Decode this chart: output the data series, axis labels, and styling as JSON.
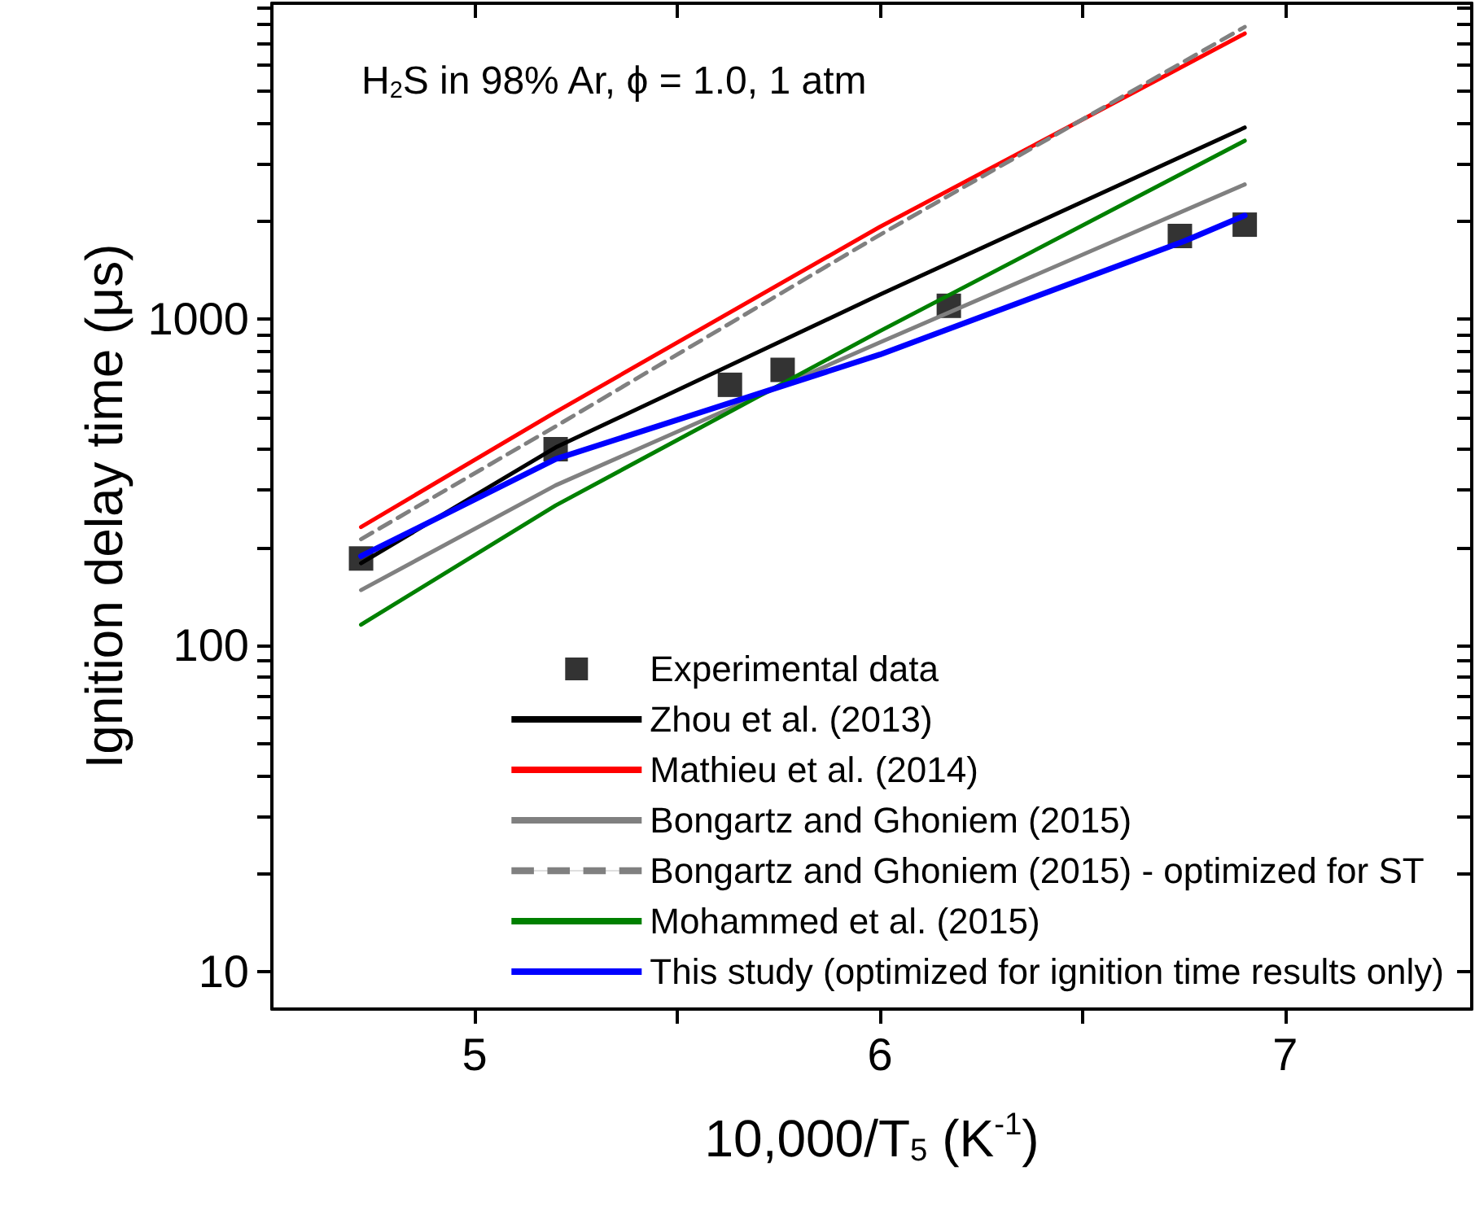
{
  "chart_data": {
    "type": "line",
    "xlabel": "10,000/T$_{5}$ (K$^{-1}$)",
    "ylabel": "Ignition delay time (μs)",
    "annotations": [
      "H$_{2}$S in 98% Ar, ϕ = 1.0, 1 atm"
    ],
    "log": "y",
    "xlim": [
      4.5,
      7.46
    ],
    "ylim": [
      7.7,
      9300
    ],
    "xticks": [
      5,
      {
        "value": 5.5,
        "label": null
      },
      6,
      {
        "value": 6.5,
        "label": null
      },
      7
    ],
    "yticks": [
      10,
      {
        "value": 20,
        "label": null
      },
      {
        "value": 30,
        "label": null
      },
      {
        "value": 40,
        "label": null
      },
      {
        "value": 50,
        "label": null
      },
      {
        "value": 60,
        "label": null
      },
      {
        "value": 70,
        "label": null
      },
      {
        "value": 80,
        "label": null
      },
      {
        "value": 90,
        "label": null
      },
      100,
      {
        "value": 200,
        "label": null
      },
      {
        "value": 300,
        "label": null
      },
      {
        "value": 400,
        "label": null
      },
      {
        "value": 500,
        "label": null
      },
      {
        "value": 600,
        "label": null
      },
      {
        "value": 700,
        "label": null
      },
      {
        "value": 800,
        "label": null
      },
      {
        "value": 900,
        "label": null
      },
      1000,
      {
        "value": 2000,
        "label": null
      },
      {
        "value": 3000,
        "label": null
      },
      {
        "value": 4000,
        "label": null
      },
      {
        "value": 5000,
        "label": null
      },
      {
        "value": 6000,
        "label": null
      },
      {
        "value": 7000,
        "label": null
      },
      {
        "value": 8000,
        "label": null
      },
      {
        "value": 9000,
        "label": null
      }
    ],
    "grid": false,
    "legend": "bottom right",
    "series": [
      {
        "name": "Experimental data",
        "type": "scatter",
        "marker": "square",
        "color": "#000000",
        "x": [
          4.72,
          5.2,
          5.63,
          5.76,
          6.17,
          6.74,
          6.9
        ],
        "values": [
          185,
          400,
          630,
          700,
          1100,
          1800,
          1950
        ]
      },
      {
        "name": "Zhou et al. (2013)",
        "marker": "none",
        "line_style": "solid",
        "color": "#000000",
        "x": [
          4.72,
          5.2,
          6.0,
          6.9
        ],
        "values": [
          179,
          405,
          1190,
          3870
        ]
      },
      {
        "name": "Mathieu et al. (2014)",
        "marker": "none",
        "line_style": "solid",
        "color": "#ff0000",
        "x": [
          4.72,
          5.2,
          6.0,
          6.9
        ],
        "values": [
          231,
          520,
          1920,
          7510
        ]
      },
      {
        "name": "Bongartz and Ghoniem (2015)",
        "marker": "none",
        "line_style": "solid",
        "color": "#808080",
        "x": [
          4.72,
          5.2,
          6.0,
          6.9
        ],
        "values": [
          148,
          310,
          850,
          2590
        ]
      },
      {
        "name": "Bongartz and Ghoniem (2015) - optimized for ST",
        "marker": "none",
        "line_style": "dashed",
        "color": "#808080",
        "x": [
          4.72,
          5.2,
          6.0,
          6.9
        ],
        "values": [
          212,
          470,
          1815,
          7870
        ]
      },
      {
        "name": "Mohammed et al. (2015)",
        "marker": "none",
        "line_style": "solid",
        "color": "#008000",
        "x": [
          4.72,
          5.2,
          6.0,
          6.9
        ],
        "values": [
          116,
          269,
          920,
          3525
        ]
      },
      {
        "name": "This study (optimized for ignition time results only)",
        "marker": "none",
        "line_style": "solid",
        "color": "#0000ff",
        "x": [
          4.72,
          5.2,
          6.0,
          6.75,
          6.9
        ],
        "values": [
          188,
          373,
          780,
          1735,
          2080
        ]
      }
    ]
  }
}
